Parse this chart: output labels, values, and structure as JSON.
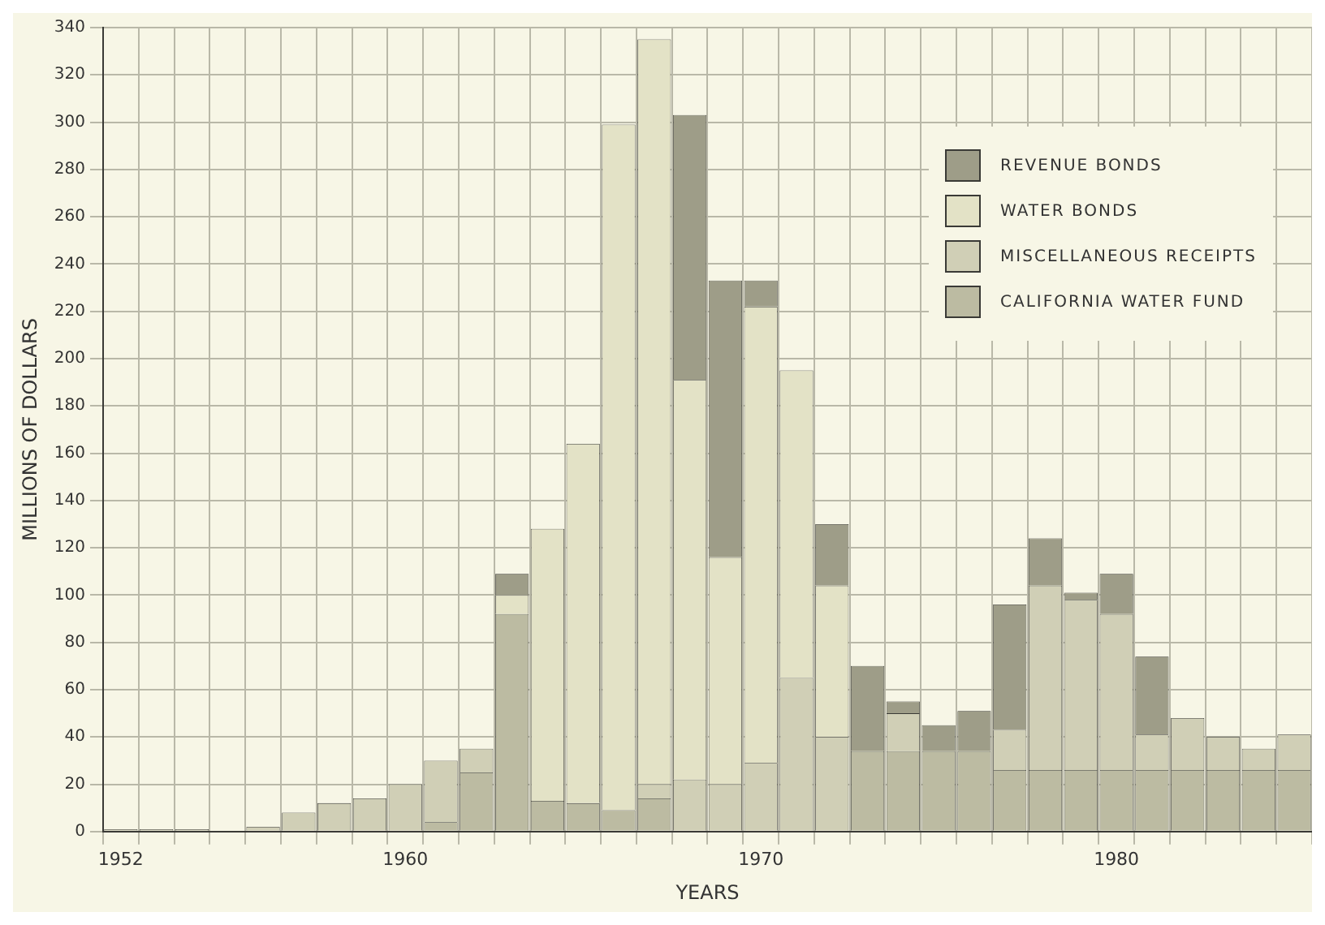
{
  "chart_data": {
    "type": "bar",
    "stacked": true,
    "xlabel": "YEARS",
    "ylabel": "MILLIONS OF DOLLARS",
    "categories": [
      "1952",
      null,
      null,
      null,
      null,
      null,
      null,
      null,
      "1960",
      null,
      null,
      null,
      null,
      null,
      null,
      null,
      null,
      null,
      "1970",
      null,
      null,
      null,
      null,
      null,
      null,
      null,
      null,
      null,
      "1980",
      null,
      null,
      null,
      null,
      null
    ],
    "series": [
      {
        "name": "CALIFORNIA WATER FUND",
        "color": "#bcbba2",
        "values": [
          0,
          0,
          0,
          0,
          0,
          0,
          0,
          0,
          0,
          4,
          25,
          92,
          13,
          12,
          9,
          14,
          0,
          0,
          0,
          0,
          0,
          34,
          34,
          34,
          34,
          26,
          26,
          26,
          26,
          26,
          26,
          26,
          26,
          26
        ]
      },
      {
        "name": "MISCELLANEOUS RECEIPTS",
        "color": "#d0cfb6",
        "values": [
          1,
          1,
          1,
          0,
          2,
          8,
          12,
          14,
          20,
          26,
          10,
          0,
          0,
          0,
          0,
          6,
          22,
          20,
          29,
          65,
          40,
          0,
          16,
          0,
          0,
          17,
          78,
          72,
          66,
          15,
          22,
          14,
          9,
          15
        ]
      },
      {
        "name": "WATER BONDS",
        "color": "#e3e2c6",
        "values": [
          0,
          0,
          0,
          0,
          0,
          0,
          0,
          0,
          0,
          0,
          0,
          8,
          115,
          152,
          290,
          315,
          169,
          96,
          193,
          130,
          64,
          0,
          0,
          0,
          0,
          0,
          0,
          0,
          0,
          0,
          0,
          0,
          0,
          0
        ]
      },
      {
        "name": "REVENUE BONDS",
        "color": "#9e9d88",
        "values": [
          0,
          0,
          0,
          0,
          0,
          0,
          0,
          0,
          0,
          0,
          0,
          9,
          0,
          0,
          0,
          0,
          112,
          117,
          11,
          0,
          26,
          36,
          5,
          11,
          17,
          53,
          20,
          3,
          17,
          33,
          0,
          0,
          0,
          0
        ]
      }
    ],
    "ylim": [
      0,
      340
    ],
    "yticks": [
      0,
      20,
      40,
      60,
      80,
      100,
      120,
      140,
      160,
      180,
      200,
      220,
      240,
      260,
      280,
      300,
      320,
      340
    ],
    "grid": true,
    "legend": "top right"
  }
}
